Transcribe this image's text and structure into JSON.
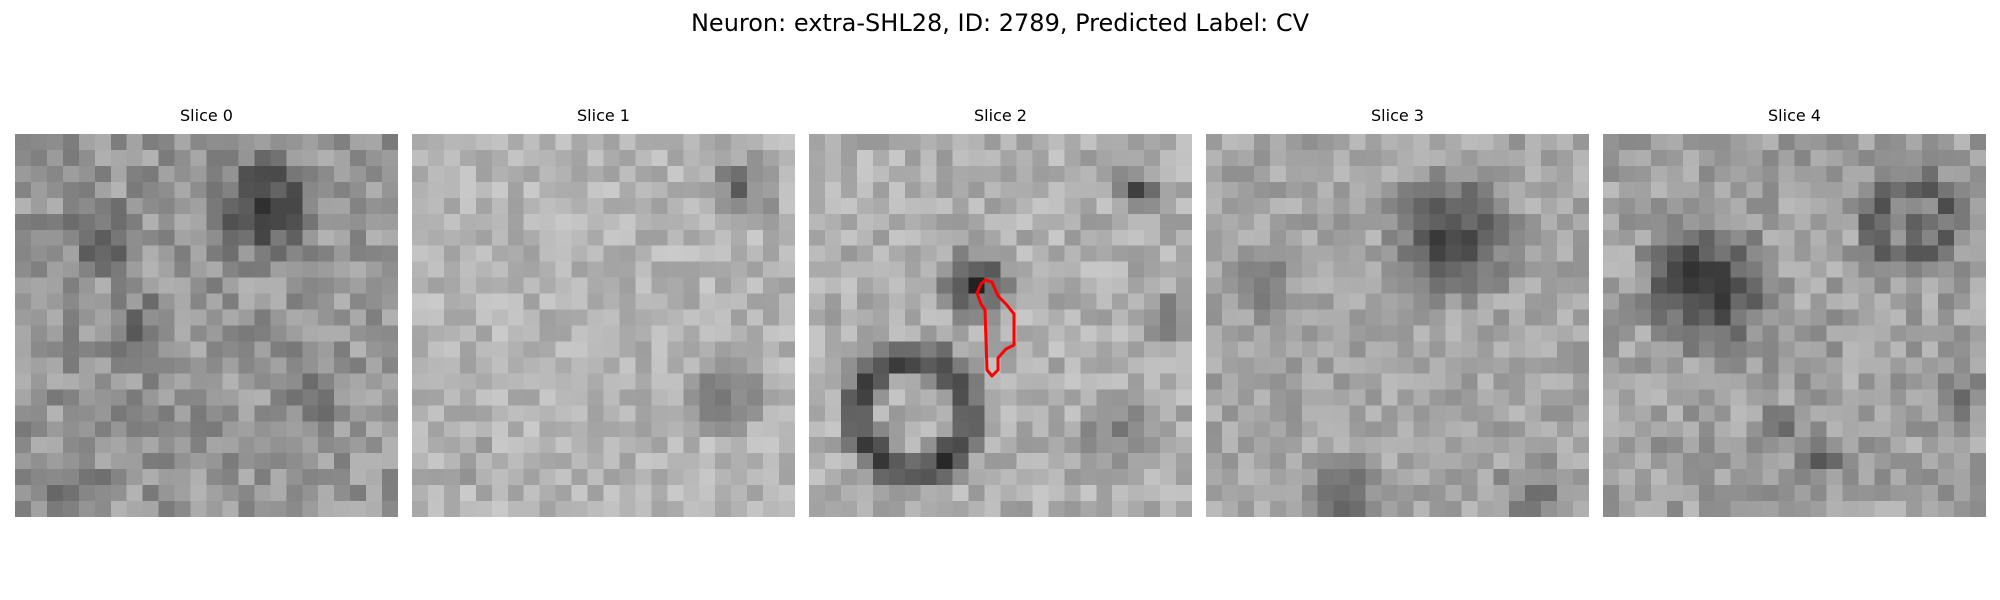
{
  "figure": {
    "title": "Neuron: extra-SHL28, ID: 2789, Predicted Label: CV"
  },
  "panels": [
    {
      "label": "Slice 0"
    },
    {
      "label": "Slice 1"
    },
    {
      "label": "Slice 2"
    },
    {
      "label": "Slice 3"
    },
    {
      "label": "Slice 4"
    }
  ],
  "colors": {
    "background": "#ffffff",
    "contour": "#ff0000"
  }
}
